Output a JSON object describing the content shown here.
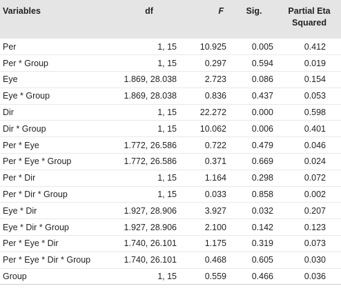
{
  "table": {
    "header": [
      "Variables",
      "df",
      "F",
      "Sig.",
      "Partial Eta Squared"
    ],
    "rows": [
      [
        "Per",
        "1, 15",
        "10.925",
        "0.005",
        "0.412"
      ],
      [
        "Per * Group",
        "1, 15",
        "0.297",
        "0.594",
        "0.019"
      ],
      [
        "Eye",
        "1.869, 28.038",
        "2.723",
        "0.086",
        "0.154"
      ],
      [
        "Eye * Group",
        "1.869, 28.038",
        "0.836",
        "0.437",
        "0.053"
      ],
      [
        "Dir",
        "1, 15",
        "22.272",
        "0.000",
        "0.598"
      ],
      [
        "Dir * Group",
        "1, 15",
        "10.062",
        "0.006",
        "0.401"
      ],
      [
        "Per * Eye",
        "1.772, 26.586",
        "0.722",
        "0.479",
        "0.046"
      ],
      [
        "Per * Eye * Group",
        "1.772, 26.586",
        "0.371",
        "0.669",
        "0.024"
      ],
      [
        "Per * Dir",
        "1, 15",
        "1.164",
        "0.298",
        "0.072"
      ],
      [
        "Per * Dir * Group",
        "1, 15",
        "0.033",
        "0.858",
        "0.002"
      ],
      [
        "Eye * Dir",
        "1.927, 28.906",
        "3.927",
        "0.032",
        "0.207"
      ],
      [
        "Eye * Dir * Group",
        "1.927, 28.906",
        "2.100",
        "0.142",
        "0.123"
      ],
      [
        "Per * Eye * Dir",
        "1.740, 26.101",
        "1.175",
        "0.319",
        "0.073"
      ],
      [
        "Per * Eye * Dir * Group",
        "1.740, 26.101",
        "0.468",
        "0.605",
        "0.030"
      ],
      [
        "Group",
        "1, 15",
        "0.559",
        "0.466",
        "0.036"
      ]
    ]
  }
}
